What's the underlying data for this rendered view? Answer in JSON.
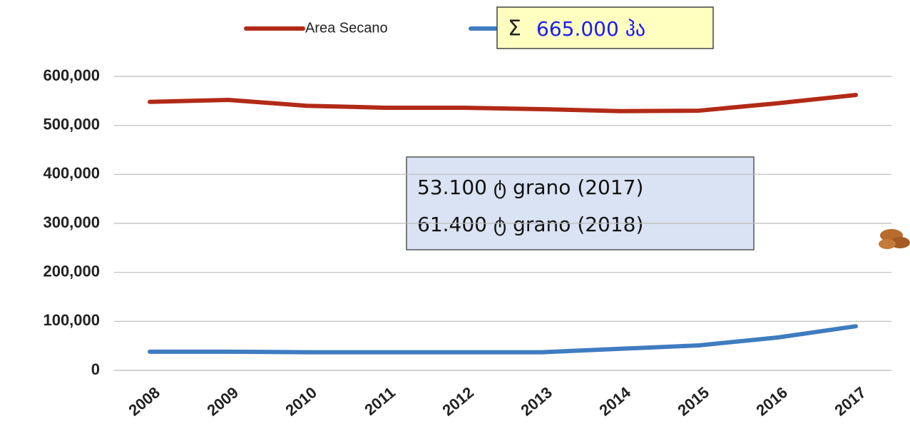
{
  "chart_data": {
    "type": "line",
    "categories": [
      "2008",
      "2009",
      "2010",
      "2011",
      "2012",
      "2013",
      "2014",
      "2015",
      "2016",
      "2017"
    ],
    "series": [
      {
        "name": "Area Secano",
        "color": "#b22a17",
        "values": [
          548000,
          552000,
          540000,
          536000,
          536000,
          533000,
          529000,
          530000,
          545000,
          562000
        ]
      },
      {
        "color": "#3f7cc0",
        "values": [
          38000,
          38000,
          37000,
          37000,
          37000,
          37000,
          44000,
          51000,
          67000,
          90000
        ]
      }
    ],
    "ylim": [
      0,
      600000
    ],
    "yticks": [
      0,
      {
        "value": 100000,
        "label": "100,000"
      },
      {
        "value": 200000,
        "label": "200,000"
      },
      {
        "value": 300000,
        "label": "300,000"
      },
      {
        "value": 400000,
        "label": "400,000"
      },
      {
        "value": 500000,
        "label": "500,000"
      },
      {
        "value": 600000,
        "label": "600,000"
      }
    ],
    "grid": true,
    "sum_box": {
      "symbol": "Σ",
      "text": "665.000 ჰა"
    },
    "note_box": [
      "53.100 ტ grano (2017)",
      "61.400 ტ grano (2018)"
    ]
  }
}
